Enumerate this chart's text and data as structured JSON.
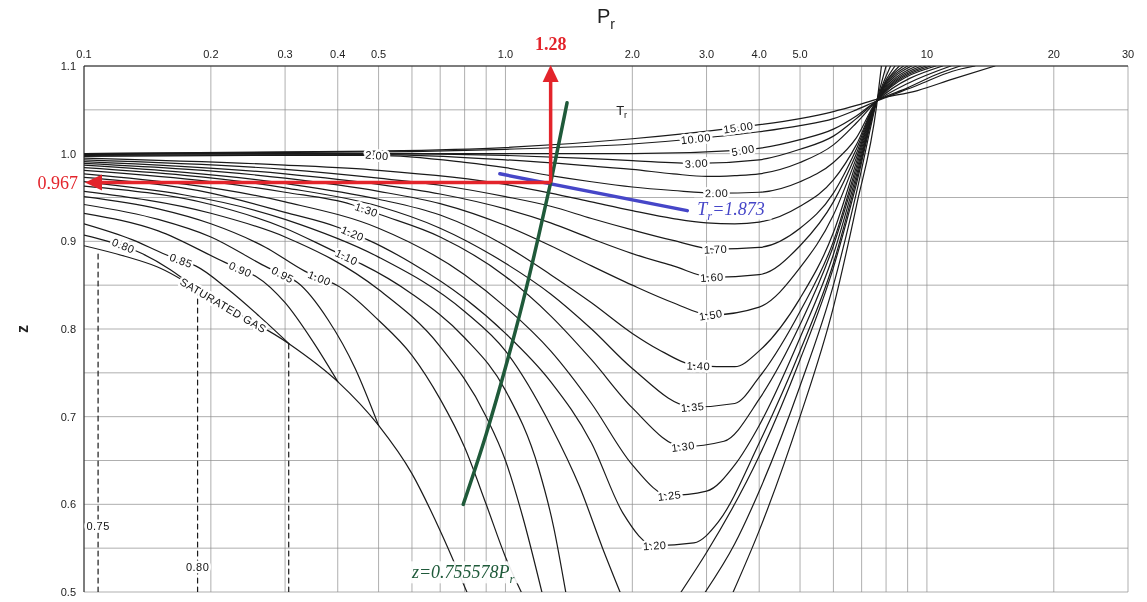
{
  "chart_data": {
    "type": "line",
    "xlabel": "P$_{r}$",
    "ylabel": "z",
    "log": "x",
    "grid": true,
    "xlim": [
      0.1,
      30
    ],
    "ylim": [
      0.5,
      1.1
    ],
    "xticks": [
      0.1,
      0.2,
      0.3,
      0.4,
      0.5,
      {
        "value": 0.6,
        "label": null
      },
      {
        "value": 0.7,
        "label": null
      },
      {
        "value": 0.8,
        "label": null
      },
      {
        "value": 0.9,
        "label": null
      },
      {
        "value": 1,
        "label": "1.0"
      },
      {
        "value": 2,
        "label": "2.0"
      },
      {
        "value": 3,
        "label": "3.0"
      },
      {
        "value": 4,
        "label": "4.0"
      },
      {
        "value": 5,
        "label": "5.0"
      },
      {
        "value": 6,
        "label": null
      },
      {
        "value": 7,
        "label": null
      },
      {
        "value": 8,
        "label": null
      },
      {
        "value": 9,
        "label": null
      },
      10,
      20,
      30
    ],
    "yticks": [
      0.5,
      {
        "value": 0.55,
        "label": null
      },
      0.6,
      {
        "value": 0.65,
        "label": null
      },
      0.7,
      {
        "value": 0.75,
        "label": null
      },
      0.8,
      {
        "value": 0.85,
        "label": null
      },
      0.9,
      {
        "value": 0.95,
        "label": null
      },
      {
        "value": 1,
        "label": "1.0"
      },
      {
        "value": 1.05,
        "label": null
      },
      1.1
    ],
    "annotations": [
      "T$_{r}$",
      {
        "text": "SATURATED GAS",
        "x": 0.214,
        "y": 0.827
      },
      {
        "text": "0.80",
        "x": 0.124,
        "y": 0.895
      },
      {
        "text": "0.85",
        "x": 0.17,
        "y": 0.878
      },
      {
        "text": "0.90",
        "x": 0.235,
        "y": 0.868
      },
      {
        "text": "0.95",
        "x": 0.296,
        "y": 0.862
      },
      {
        "text": "1.00",
        "x": 0.362,
        "y": 0.858
      },
      {
        "text": "1.10",
        "x": 0.42,
        "y": 0.882
      },
      {
        "text": "1.20",
        "x": 0.434,
        "y": 0.909
      },
      {
        "text": "1.30",
        "x": 0.468,
        "y": 0.936
      },
      {
        "text": "2.00",
        "x": 0.496,
        "y": 0.998
      },
      {
        "text": "1.20",
        "x": 2.26,
        "y": 0.553
      },
      {
        "text": "1.25",
        "x": 2.45,
        "y": 0.61
      },
      {
        "text": "1.30",
        "x": 2.64,
        "y": 0.666
      },
      {
        "text": "1.35",
        "x": 2.78,
        "y": 0.711
      },
      {
        "text": "1.40",
        "x": 2.87,
        "y": 0.758
      },
      {
        "text": "1.50",
        "x": 3.07,
        "y": 0.816
      },
      {
        "text": "1.60",
        "x": 3.09,
        "y": 0.859
      },
      {
        "text": "1.70",
        "x": 3.15,
        "y": 0.891
      },
      {
        "text": "2.00",
        "x": 3.17,
        "y": 0.955
      },
      {
        "text": "3.00",
        "x": 2.84,
        "y": 0.989
      },
      {
        "text": "5.00",
        "x": 3.66,
        "y": 1.004
      },
      {
        "text": "10.00",
        "x": 2.83,
        "y": 1.017
      },
      {
        "text": "15.00",
        "x": 3.57,
        "y": 1.03
      },
      {
        "text": "0.75",
        "x": 0.108,
        "y": 0.575
      },
      {
        "text": "0.80",
        "x": 0.186,
        "y": 0.529
      }
    ],
    "ref_lines": [
      {
        "axis": "x",
        "value": 1.28,
        "label": "1.28",
        "color": "#e3242b"
      },
      {
        "axis": "y",
        "value": 0.967,
        "label": "0.967",
        "color": "#e3242b"
      }
    ],
    "series": [
      {
        "color": "#1a1a1a",
        "x": [
          0.1,
          0.125,
          0.149,
          0.214,
          0.307,
          0.4,
          0.5,
          0.6,
          0.7,
          0.81
        ],
        "values": [
          0.895,
          0.883,
          0.871,
          0.827,
          0.783,
          0.74,
          0.69,
          0.635,
          0.57,
          0.5
        ]
      },
      {
        "color": "#1a1a1a",
        "x": [
          0.1,
          0.114,
          0.124,
          0.136,
          0.16,
          0.186
        ],
        "values": [
          0.907,
          0.9,
          0.895,
          0.887,
          0.868,
          0.845
        ]
      },
      {
        "color": "#1a1a1a",
        "x": [
          0.1,
          0.13,
          0.156,
          0.17,
          0.184,
          0.22,
          0.26,
          0.307
        ],
        "values": [
          0.92,
          0.902,
          0.885,
          0.878,
          0.872,
          0.845,
          0.815,
          0.783
        ]
      },
      {
        "color": "#1a1a1a",
        "x": [
          0.1,
          0.15,
          0.216,
          0.235,
          0.256,
          0.3,
          0.35,
          0.4
        ],
        "values": [
          0.932,
          0.912,
          0.876,
          0.868,
          0.86,
          0.83,
          0.785,
          0.74
        ]
      },
      {
        "color": "#1a1a1a",
        "x": [
          0.1,
          0.15,
          0.2,
          0.273,
          0.296,
          0.321,
          0.38,
          0.44,
          0.5
        ],
        "values": [
          0.942,
          0.925,
          0.905,
          0.87,
          0.862,
          0.853,
          0.81,
          0.755,
          0.69
        ]
      },
      {
        "color": "#1a1a1a",
        "x": [
          0.1,
          0.15,
          0.2,
          0.27,
          0.334,
          0.362,
          0.398,
          0.5,
          0.6,
          0.7,
          0.8,
          0.9,
          1.0,
          1.09
        ],
        "values": [
          0.951,
          0.937,
          0.92,
          0.893,
          0.866,
          0.858,
          0.85,
          0.81,
          0.77,
          0.72,
          0.665,
          0.6,
          0.54,
          0.5
        ]
      },
      {
        "color": "#1a1a1a",
        "x": [
          0.1,
          0.2,
          0.3,
          0.5,
          0.7,
          0.9,
          1.0,
          1.1,
          1.22
        ],
        "values": [
          0.957,
          0.932,
          0.905,
          0.845,
          0.78,
          0.7,
          0.65,
          0.585,
          0.5
        ]
      },
      {
        "color": "#1a1a1a",
        "x": [
          3.47,
          4,
          5,
          6,
          6.8,
          7.6,
          7.8
        ],
        "values": [
          0.5,
          0.57,
          0.7,
          0.825,
          0.94,
          1.055,
          1.1
        ]
      },
      {
        "color": "#1a1a1a",
        "x": [
          0.1,
          0.2,
          0.3,
          0.387,
          0.42,
          0.456,
          0.6,
          0.8,
          1.0,
          1.2,
          1.3,
          1.39
        ],
        "values": [
          0.963,
          0.942,
          0.915,
          0.89,
          0.882,
          0.874,
          0.84,
          0.79,
          0.73,
          0.64,
          0.575,
          0.5
        ]
      },
      {
        "color": "#1a1a1a",
        "x": [
          2.98,
          3.5,
          4,
          5,
          6,
          6.8,
          7.6,
          8.0
        ],
        "values": [
          0.5,
          0.555,
          0.615,
          0.735,
          0.85,
          0.955,
          1.06,
          1.1
        ]
      },
      {
        "color": "#1a1a1a",
        "x": [
          0.1,
          0.3,
          0.5,
          0.8,
          1.0,
          1.28,
          1.5,
          1.7,
          1.87
        ],
        "values": [
          0.968,
          0.925,
          0.882,
          0.82,
          0.775,
          0.69,
          0.62,
          0.55,
          0.5
        ]
      },
      {
        "color": "#1a1a1a",
        "x": [
          2.61,
          3,
          4,
          5,
          6,
          6.8,
          7.6,
          8.2
        ],
        "values": [
          0.5,
          0.545,
          0.655,
          0.765,
          0.87,
          0.965,
          1.06,
          1.1
        ]
      },
      {
        "color": "#1a1a1a",
        "x": [
          0.1,
          0.2,
          0.3,
          0.4,
          0.434,
          0.47,
          0.6,
          0.8,
          1.0,
          1.28,
          1.6,
          1.9,
          2.26,
          2.8,
          3.2,
          4,
          5,
          6,
          6.8,
          7.6,
          8.4
        ],
        "values": [
          0.973,
          0.955,
          0.933,
          0.916,
          0.909,
          0.902,
          0.875,
          0.835,
          0.795,
          0.74,
          0.67,
          0.59,
          0.553,
          0.556,
          0.58,
          0.67,
          0.775,
          0.875,
          0.97,
          1.06,
          1.1
        ]
      },
      {
        "color": "#1a1a1a",
        "x": [
          0.1,
          0.3,
          0.5,
          0.8,
          1.0,
          1.28,
          1.6,
          2.0,
          2.45,
          3.0,
          3.5,
          4,
          5,
          6,
          6.8,
          7.6,
          8.6
        ],
        "values": [
          0.977,
          0.945,
          0.915,
          0.862,
          0.825,
          0.775,
          0.715,
          0.645,
          0.61,
          0.615,
          0.645,
          0.69,
          0.79,
          0.885,
          0.975,
          1.06,
          1.1
        ]
      },
      {
        "color": "#1a1a1a",
        "x": [
          0.1,
          0.2,
          0.3,
          0.431,
          0.468,
          0.508,
          0.7,
          1.0,
          1.28,
          1.6,
          2.0,
          2.64,
          3.3,
          4,
          5,
          6,
          6.8,
          7.6,
          8.8
        ],
        "values": [
          0.981,
          0.968,
          0.956,
          0.942,
          0.936,
          0.93,
          0.905,
          0.86,
          0.815,
          0.765,
          0.71,
          0.666,
          0.672,
          0.72,
          0.805,
          0.895,
          0.98,
          1.06,
          1.1
        ]
      },
      {
        "color": "#1a1a1a",
        "x": [
          0.1,
          0.3,
          0.5,
          0.7,
          1.0,
          1.28,
          1.6,
          2.0,
          2.78,
          3.5,
          4,
          5,
          6,
          6.8,
          7.6,
          9.0
        ],
        "values": [
          0.984,
          0.961,
          0.94,
          0.915,
          0.875,
          0.84,
          0.8,
          0.755,
          0.711,
          0.715,
          0.745,
          0.82,
          0.9,
          0.985,
          1.06,
          1.1
        ]
      },
      {
        "color": "#1a1a1a",
        "x": [
          0.1,
          0.3,
          0.5,
          0.7,
          1.0,
          1.28,
          1.6,
          2.0,
          2.3,
          2.87,
          3.5,
          4,
          5,
          6,
          6.8,
          7.6,
          9.2
        ],
        "values": [
          0.987,
          0.966,
          0.948,
          0.93,
          0.895,
          0.862,
          0.83,
          0.795,
          0.777,
          0.758,
          0.757,
          0.775,
          0.835,
          0.91,
          0.99,
          1.06,
          1.1
        ]
      },
      {
        "color": "#1a1a1a",
        "x": [
          0.1,
          0.3,
          0.5,
          0.7,
          1.0,
          1.28,
          1.6,
          2.0,
          2.5,
          3.07,
          4,
          5,
          6,
          6.8,
          7.6,
          9.45
        ],
        "values": [
          0.989,
          0.972,
          0.957,
          0.943,
          0.918,
          0.895,
          0.872,
          0.85,
          0.83,
          0.816,
          0.825,
          0.87,
          0.93,
          0.995,
          1.06,
          1.1
        ]
      },
      {
        "color": "#1a1a1a",
        "x": [
          0.1,
          0.3,
          0.5,
          0.7,
          1.0,
          1.28,
          1.6,
          2.0,
          2.5,
          3.09,
          4,
          5,
          6,
          6.8,
          7.6,
          9.7
        ],
        "values": [
          0.991,
          0.977,
          0.965,
          0.954,
          0.937,
          0.921,
          0.903,
          0.886,
          0.872,
          0.859,
          0.862,
          0.895,
          0.945,
          1.0,
          1.06,
          1.1
        ]
      },
      {
        "color": "#1a1a1a",
        "x": [
          0.1,
          0.3,
          0.5,
          0.7,
          1.0,
          1.28,
          1.6,
          2.0,
          2.5,
          3.15,
          4,
          5,
          6,
          6.8,
          7.6,
          9.95
        ],
        "values": [
          0.993,
          0.982,
          0.972,
          0.964,
          0.951,
          0.94,
          0.926,
          0.913,
          0.901,
          0.891,
          0.893,
          0.915,
          0.955,
          1.005,
          1.06,
          1.1
        ]
      },
      {
        "color": "#1a1a1a",
        "x": [
          0.1,
          0.3,
          0.5,
          1.0,
          1.28,
          1.6,
          2.0,
          2.5,
          3.0,
          3.5,
          4,
          5,
          6,
          6.8,
          7.6,
          10.2
        ],
        "values": [
          0.995,
          0.987,
          0.981,
          0.965,
          0.955,
          0.945,
          0.935,
          0.926,
          0.921,
          0.92,
          0.922,
          0.94,
          0.97,
          1.01,
          1.06,
          1.1
        ]
      },
      {
        "color": "#1a1a1a",
        "x": [
          0.1,
          0.3,
          0.496,
          0.8,
          1.0,
          1.28,
          1.6,
          2.0,
          2.5,
          3.17,
          4,
          5,
          6,
          6.8,
          7.6,
          10.5
        ],
        "values": [
          0.997,
          0.998,
          0.998,
          0.99,
          0.984,
          0.975,
          0.968,
          0.962,
          0.958,
          0.955,
          0.956,
          0.968,
          0.99,
          1.018,
          1.06,
          1.1
        ]
      },
      {
        "color": "#1a1a1a",
        "x": [
          0.1,
          0.5,
          1.0,
          1.5,
          2.0,
          2.5,
          3.0,
          3.5,
          4,
          5,
          6,
          6.8,
          7.6,
          10.9
        ],
        "values": [
          0.998,
          0.999,
          0.993,
          0.987,
          0.982,
          0.977,
          0.974,
          0.975,
          0.977,
          0.99,
          1.01,
          1.035,
          1.06,
          1.1
        ]
      },
      {
        "color": "#1a1a1a",
        "x": [
          0.1,
          0.5,
          1.0,
          1.5,
          2.0,
          2.84,
          4,
          5,
          6,
          6.8,
          7.6,
          9.0,
          11.4
        ],
        "values": [
          0.999,
          1.0,
          0.998,
          0.995,
          0.992,
          0.989,
          0.993,
          1.005,
          1.02,
          1.04,
          1.06,
          1.08,
          1.1
        ]
      },
      {
        "color": "#1a1a1a",
        "x": [
          0.1,
          0.5,
          1.0,
          2.0,
          3.66,
          5,
          6,
          6.8,
          7.6,
          9.0,
          10.5,
          12.0
        ],
        "values": [
          1.0,
          1.0,
          1.0,
          1.0,
          1.004,
          1.016,
          1.028,
          1.043,
          1.06,
          1.075,
          1.09,
          1.1
        ]
      },
      {
        "color": "#1a1a1a",
        "x": [
          0.1,
          0.5,
          1.0,
          2.0,
          2.83,
          4,
          5,
          6,
          6.8,
          7.6,
          9.5,
          11.5,
          13.0
        ],
        "values": [
          1.0,
          1.002,
          1.005,
          1.011,
          1.017,
          1.025,
          1.032,
          1.04,
          1.05,
          1.06,
          1.078,
          1.094,
          1.1
        ]
      },
      {
        "color": "#1a1a1a",
        "x": [
          0.1,
          0.5,
          1.0,
          2.0,
          3.57,
          5,
          6,
          6.8,
          7.6,
          9.5,
          11.5,
          14.5
        ],
        "values": [
          1.0,
          1.003,
          1.007,
          1.017,
          1.03,
          1.04,
          1.048,
          1.055,
          1.062,
          1.072,
          1.085,
          1.1
        ]
      },
      {
        "color": "#1a1a1a",
        "line_style": "dashed",
        "x": [
          0.108,
          0.108,
          0.108
        ],
        "values": [
          0.5,
          0.575,
          0.89
        ]
      },
      {
        "color": "#1a1a1a",
        "line_style": "dashed",
        "x": [
          0.186,
          0.186,
          0.186
        ],
        "values": [
          0.5,
          0.529,
          0.845
        ]
      },
      {
        "color": "#1a1a1a",
        "line_style": "dashed",
        "x": [
          0.306,
          0.306
        ],
        "values": [
          0.5,
          0.783
        ]
      },
      {
        "name": "T$_{r}$=1.873",
        "color": "#4646c8",
        "x": [
          0.97,
          2.7
        ],
        "values": [
          0.977,
          0.935
        ]
      },
      {
        "name": "z=0.755578P$_{r}$",
        "color": "#1f5a3a",
        "x": [
          0.794,
          0.9,
          1.0,
          1.1,
          1.2,
          1.28,
          1.4
        ],
        "values": [
          0.6,
          0.68,
          0.756,
          0.831,
          0.907,
          0.967,
          1.058
        ]
      }
    ]
  }
}
